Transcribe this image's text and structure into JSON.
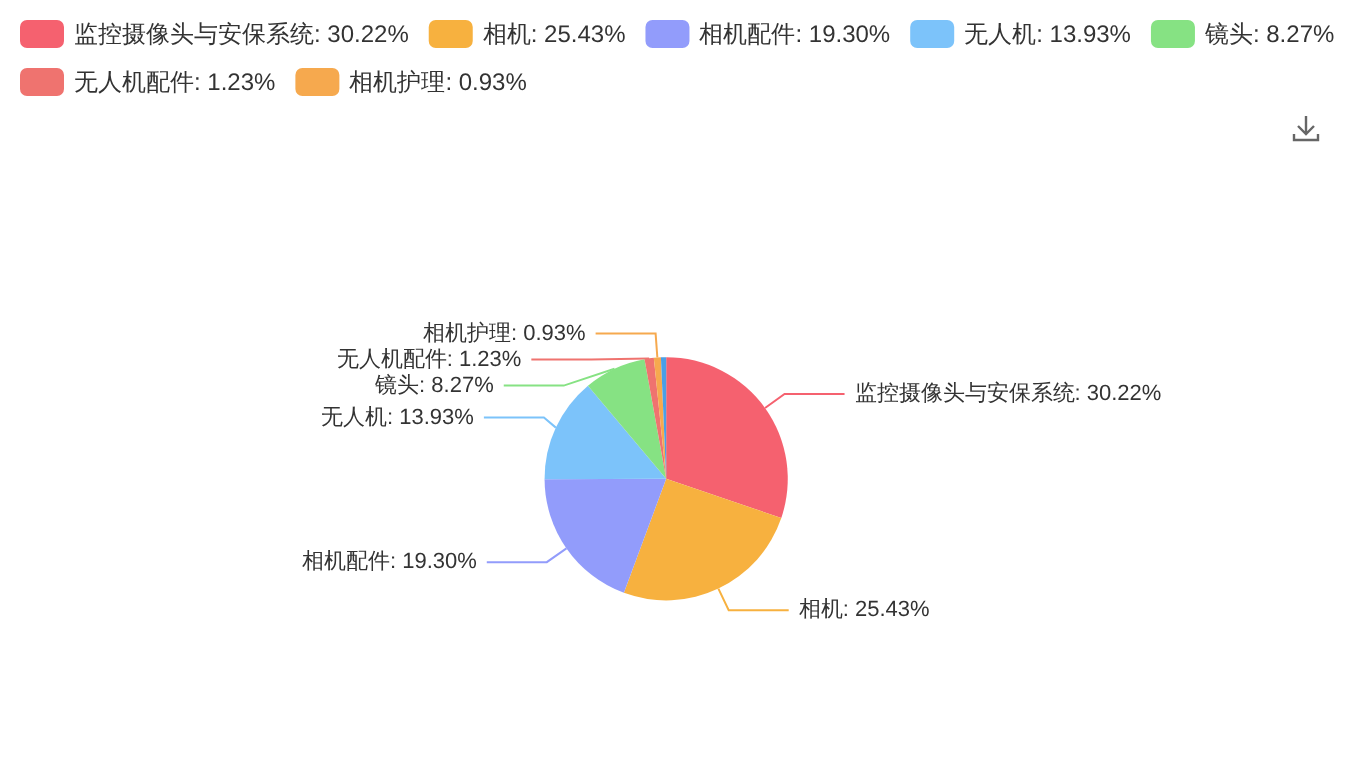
{
  "chart_data": {
    "type": "pie",
    "categories": [
      "监控摄像头与安保系统",
      "相机",
      "相机配件",
      "无人机",
      "镜头",
      "无人机配件",
      "相机护理",
      null
    ],
    "values": [
      30.22,
      25.43,
      19.3,
      13.93,
      8.27,
      1.23,
      0.93,
      0.69
    ],
    "value_labels": [
      "30.22%",
      "25.43%",
      "19.30%",
      "13.93%",
      "8.27%",
      "1.23%",
      "0.93%",
      null
    ],
    "colors": [
      "#f5616f",
      "#f7b13f",
      "#929cfb",
      "#7cc3fa",
      "#86e283",
      "#ef736f",
      "#f6a94e",
      "#4a9fe6"
    ],
    "legend": "top"
  }
}
